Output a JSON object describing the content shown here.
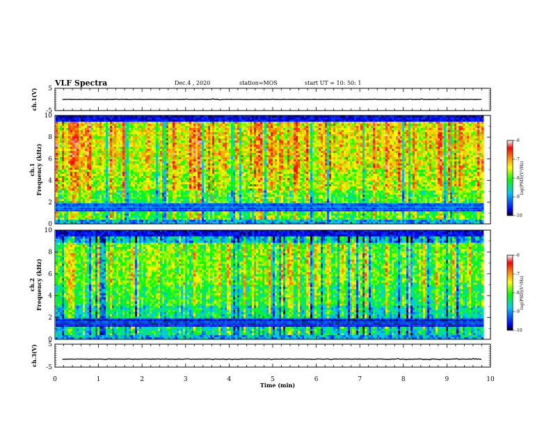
{
  "header": {
    "title": "VLF Spectra",
    "date": "Dec.4  , 2020",
    "station": "station=MOS",
    "start": "start  UT =   10: 50: 1"
  },
  "chart_data": [
    {
      "type": "line",
      "name": "ch1-waveform",
      "ylabel": "ch.1(V)",
      "ylim": [
        -5,
        5
      ],
      "yticks": [
        "5",
        "-5"
      ],
      "xlim": [
        0,
        10
      ],
      "trace_level": 0
    },
    {
      "type": "heatmap",
      "name": "ch1-spectrogram",
      "ylabel": "ch.1\nFrequency (kHz)",
      "ylim": [
        0,
        10
      ],
      "yticks": [
        "0",
        "2",
        "4",
        "6",
        "8",
        "10"
      ],
      "xlim": [
        0,
        10
      ],
      "data_end_min": 9.8,
      "colorbar": {
        "label": "log(PSD)(V²/Hz)",
        "range": [
          -10,
          -6
        ],
        "ticks": [
          "-6",
          "-7",
          "-8",
          "-9",
          "-10"
        ]
      }
    },
    {
      "type": "heatmap",
      "name": "ch2-spectrogram",
      "ylabel": "ch.2\nFrequency (kHz)",
      "ylim": [
        0,
        10
      ],
      "yticks": [
        "0",
        "2",
        "4",
        "6",
        "8",
        "10"
      ],
      "xlim": [
        0,
        10
      ],
      "data_end_min": 9.8,
      "colorbar": {
        "label": "log(PSD)(V²/Hz)",
        "range": [
          -10,
          -6
        ],
        "ticks": [
          "-6",
          "-7",
          "-8",
          "-9",
          "-10"
        ]
      }
    },
    {
      "type": "line",
      "name": "ch3-waveform",
      "ylabel": "ch.3(V)",
      "ylim": [
        -5,
        5
      ],
      "yticks": [
        "5",
        "-5"
      ],
      "xlim": [
        0,
        10
      ],
      "trace_level": -1.5
    }
  ],
  "x_axis": {
    "label": "Time (min)",
    "range": [
      0,
      10
    ],
    "ticks": [
      "0",
      "1",
      "2",
      "3",
      "4",
      "5",
      "6",
      "7",
      "8",
      "9",
      "10"
    ]
  },
  "colors": {
    "scale": [
      "#000000",
      "#0000ff",
      "#00c8ff",
      "#00ff00",
      "#ffff00",
      "#ff8000",
      "#ff0000",
      "#ffffff"
    ]
  }
}
